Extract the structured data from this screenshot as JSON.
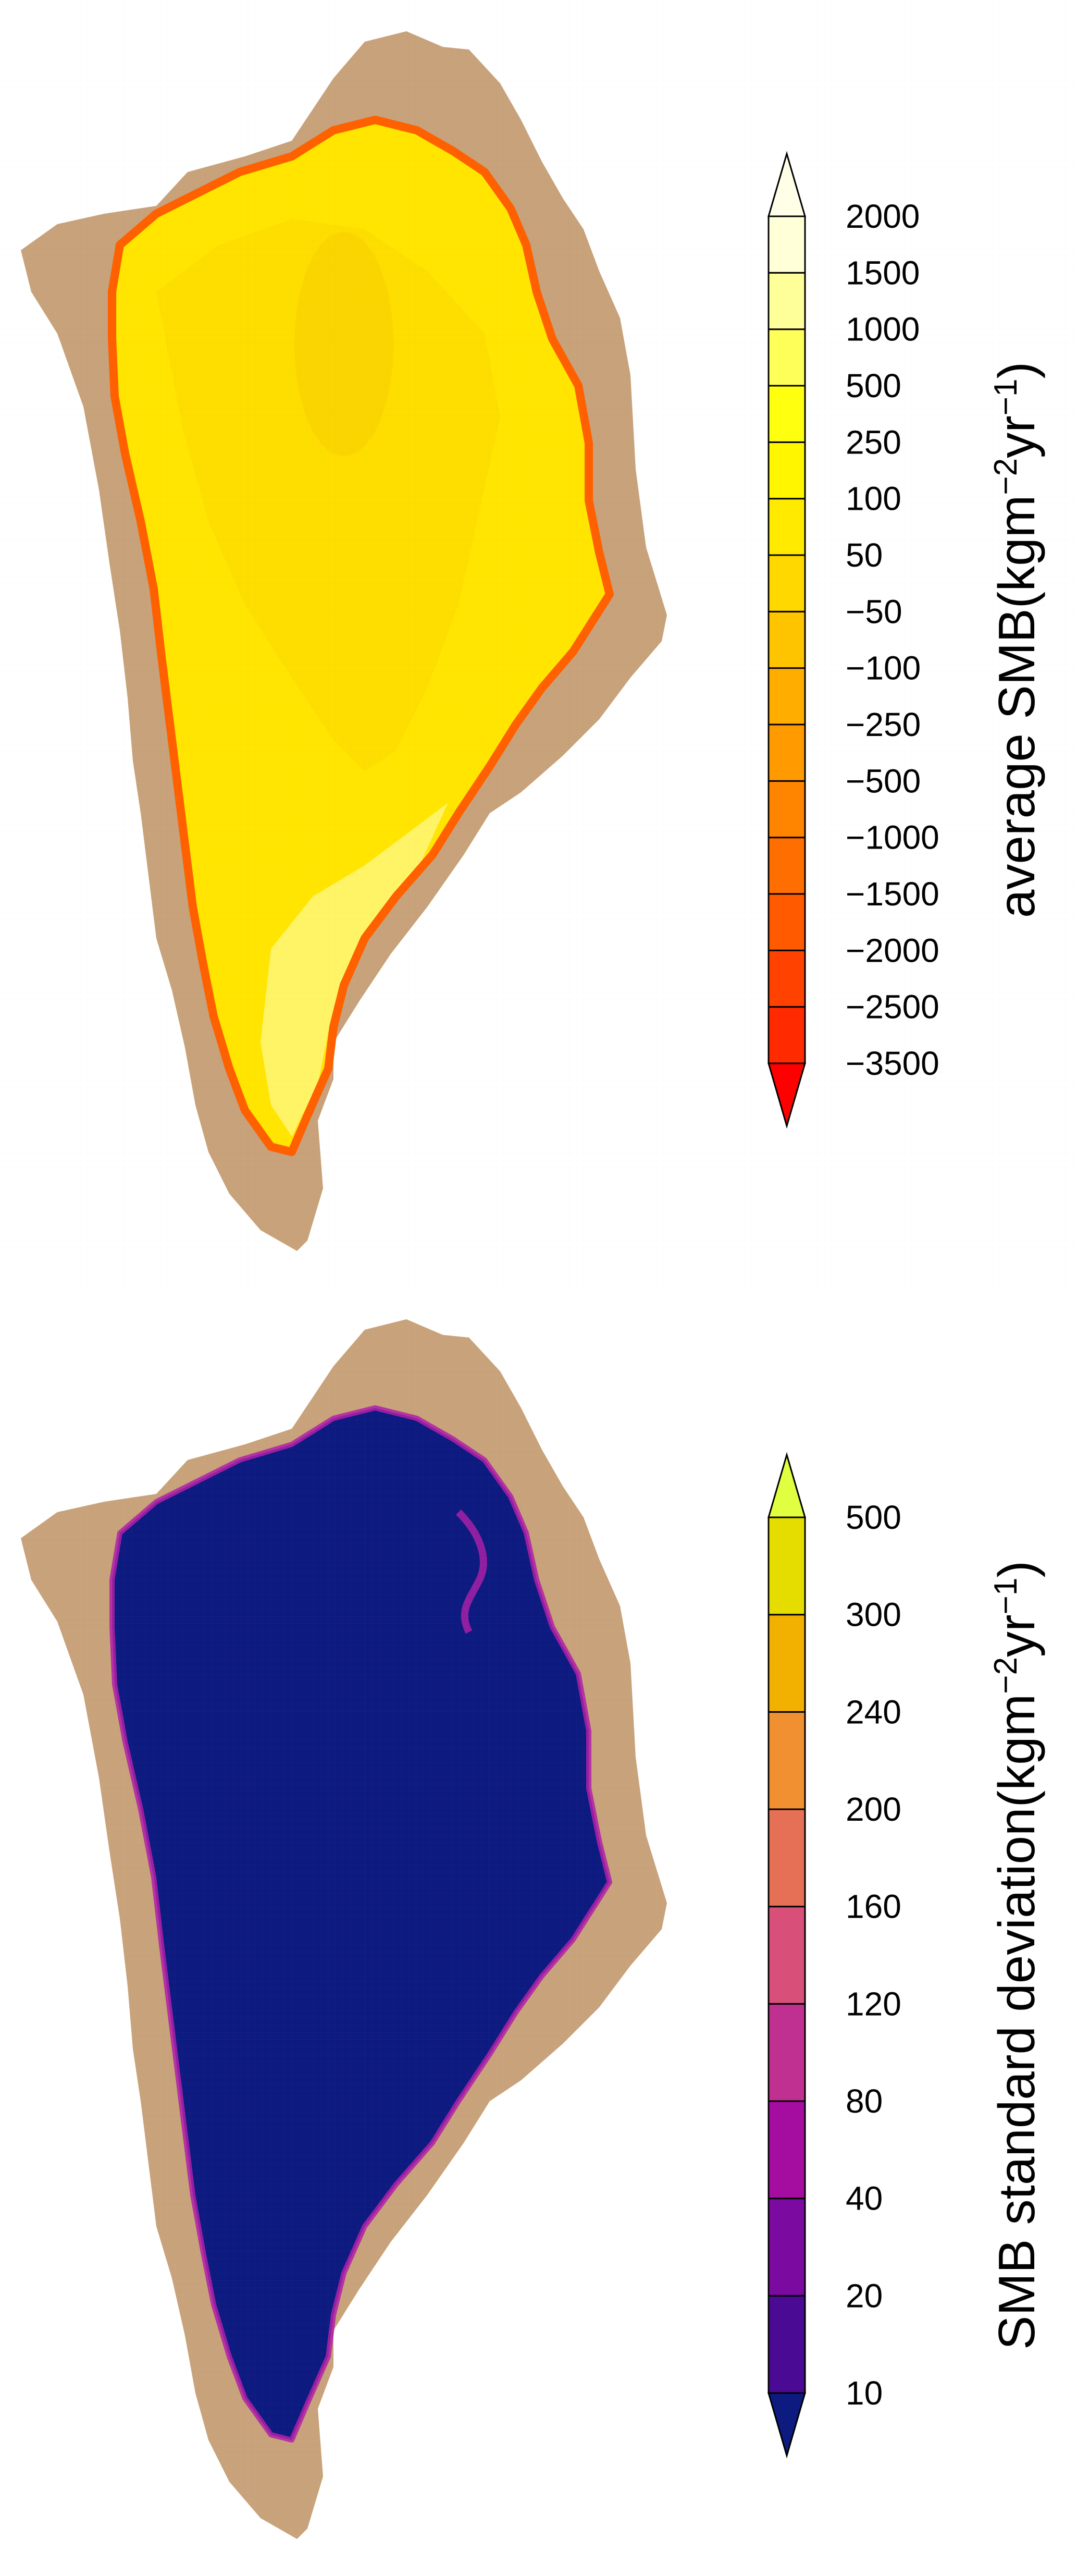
{
  "colors": {
    "land": "#c8a27a",
    "background": "#ffffff",
    "grid_line": "#000000"
  },
  "maps": [
    {
      "id": "average-smb",
      "legend_title": {
        "prefix": "average SMB(kgm",
        "sup1": "−2",
        "mid": "yr",
        "sup2": "−1",
        "suffix": ")"
      },
      "legend_levels": [
        "−3500",
        "−2500",
        "−2000",
        "−1500",
        "−1000",
        "−500",
        "−250",
        "−100",
        "−50",
        "50",
        "100",
        "250",
        "500",
        "1000",
        "1500",
        "2000"
      ],
      "legend_colors": [
        "#ff0000",
        "#ff2a00",
        "#ff4200",
        "#ff5a00",
        "#ff6e00",
        "#ff8400",
        "#ff9a00",
        "#ffae00",
        "#ffc400",
        "#ffd800",
        "#ffea00",
        "#fff600",
        "#ffff10",
        "#ffff5a",
        "#ffff9a",
        "#ffffd8",
        "#ffffe8"
      ],
      "ice_fill": "#ffe500",
      "ice_interior_dark": "#f9cd00",
      "ice_interior_light": "#fff680",
      "margin_color": "#ff6000"
    },
    {
      "id": "smb-std",
      "legend_title": {
        "prefix": "SMB standard deviation(kgm",
        "sup1": "−2",
        "mid": "yr",
        "sup2": "−1",
        "suffix": ")"
      },
      "legend_levels": [
        "10",
        "20",
        "40",
        "80",
        "120",
        "160",
        "200",
        "240",
        "300",
        "500"
      ],
      "legend_colors": [
        "#0d1a80",
        "#4b0a94",
        "#7a0aa0",
        "#a50da0",
        "#c03090",
        "#d8507a",
        "#e57055",
        "#f09030",
        "#f2b000",
        "#e6dd00",
        "#e0ff40"
      ],
      "ice_fill": "#0d1a80",
      "margin_color": "#b020a8"
    }
  ]
}
